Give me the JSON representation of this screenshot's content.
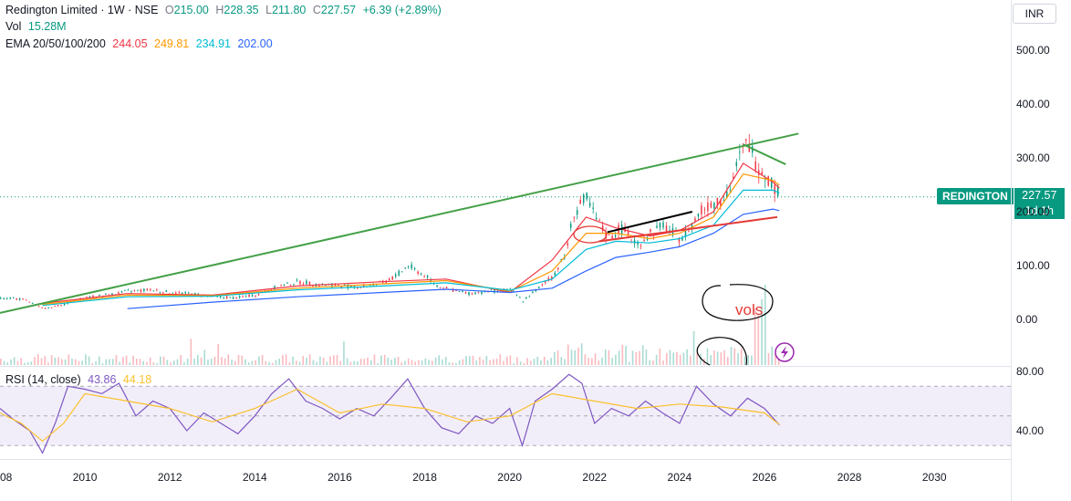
{
  "header": {
    "symbol_line": "Redington Limited · 1W · NSE",
    "open_label": "O",
    "open": "215.00",
    "high_label": "H",
    "high": "228.35",
    "low_label": "L",
    "low": "211.80",
    "close_label": "C",
    "close": "227.57",
    "change": "+6.39 (+2.89%)",
    "vol_label": "Vol",
    "vol": "15.28M",
    "ema_label": "EMA 20/50/100/200",
    "ema20": "244.05",
    "ema50": "249.81",
    "ema100": "234.91",
    "ema200": "202.00"
  },
  "rsi_header": {
    "label": "RSI (14, close)",
    "rsi": "43.86",
    "rsi_ma": "44.18"
  },
  "currency": "INR",
  "price_tag": {
    "symbol": "REDINGTON",
    "price": "227.57",
    "countdown": "1d 1h"
  },
  "annotations": {
    "vols_text": "vols"
  },
  "colors": {
    "up": "#089981",
    "down": "#f23645",
    "ema20": "#f23645",
    "ema50": "#ff9800",
    "ema100": "#00bcd4",
    "ema200": "#2962ff",
    "rsi": "#7e57c2",
    "rsi_ma": "#fbc02d",
    "trend_green": "#43a047",
    "trend_red": "#e53935",
    "trend_black": "#000000"
  },
  "chart_data": [
    {
      "type": "line",
      "title": "Redington Limited · 1W · NSE",
      "y_axis_ticks": [
        "500.00",
        "400.00",
        "300.00",
        "200.00",
        "100.00",
        "0.00"
      ],
      "y_axis_values": [
        500,
        400,
        300,
        200,
        100,
        0
      ],
      "ylim": [
        -80,
        560
      ],
      "x_axis_ticks": [
        "2008",
        "2010",
        "2012",
        "2014",
        "2016",
        "2018",
        "2020",
        "2022",
        "2024",
        "2026",
        "2028",
        "2030"
      ],
      "xlim": [
        2008,
        2031.8
      ],
      "series": [
        {
          "name": "Price",
          "x": [
            2008.0,
            2008.5,
            2009.0,
            2009.5,
            2010.0,
            2010.5,
            2011.0,
            2011.5,
            2012.0,
            2012.5,
            2013.0,
            2013.5,
            2014.0,
            2014.5,
            2015.0,
            2015.5,
            2016.0,
            2016.5,
            2017.0,
            2017.3,
            2017.6,
            2018.0,
            2018.3,
            2018.6,
            2019.0,
            2019.5,
            2020.0,
            2020.3,
            2020.7,
            2021.0,
            2021.3,
            2021.5,
            2021.8,
            2022.0,
            2022.3,
            2022.6,
            2023.0,
            2023.3,
            2023.6,
            2024.0,
            2024.3,
            2024.6,
            2025.0,
            2025.2,
            2025.4,
            2025.6,
            2025.8,
            2026.0,
            2026.2,
            2026.35
          ],
          "y": [
            40,
            38,
            20,
            28,
            40,
            45,
            52,
            55,
            50,
            48,
            42,
            40,
            45,
            60,
            70,
            65,
            62,
            60,
            68,
            80,
            100,
            80,
            62,
            55,
            48,
            52,
            55,
            35,
            60,
            80,
            120,
            200,
            225,
            190,
            150,
            170,
            140,
            160,
            175,
            150,
            180,
            210,
            225,
            250,
            300,
            330,
            290,
            270,
            250,
            227.57
          ]
        },
        {
          "name": "EMA 20",
          "x": [
            2009,
            2011,
            2013,
            2015,
            2017,
            2018.5,
            2020,
            2021,
            2021.8,
            2022.5,
            2023.3,
            2024,
            2024.8,
            2025.5,
            2026.2,
            2026.35
          ],
          "y": [
            30,
            48,
            45,
            62,
            70,
            75,
            50,
            110,
            190,
            170,
            155,
            165,
            200,
            290,
            255,
            244.05
          ]
        },
        {
          "name": "EMA 50",
          "x": [
            2009,
            2011,
            2013,
            2015,
            2017,
            2018.5,
            2020,
            2021,
            2021.8,
            2022.5,
            2023.3,
            2024,
            2024.8,
            2025.5,
            2026.2,
            2026.35
          ],
          "y": [
            28,
            45,
            44,
            58,
            66,
            72,
            52,
            90,
            160,
            160,
            150,
            160,
            190,
            270,
            258,
            249.81
          ]
        },
        {
          "name": "EMA 100",
          "x": [
            2009,
            2011,
            2013,
            2015,
            2017,
            2018.5,
            2020,
            2021,
            2021.8,
            2022.5,
            2023.3,
            2024,
            2024.8,
            2025.5,
            2026.2,
            2026.35
          ],
          "y": [
            26,
            42,
            43,
            55,
            62,
            68,
            54,
            75,
            130,
            145,
            142,
            150,
            175,
            240,
            240,
            234.91
          ]
        },
        {
          "name": "EMA 200",
          "x": [
            2011,
            2013,
            2015,
            2017,
            2018.5,
            2020,
            2021,
            2021.8,
            2022.5,
            2023.3,
            2024,
            2024.8,
            2025.5,
            2026.2,
            2026.35
          ],
          "y": [
            20,
            32,
            42,
            50,
            56,
            50,
            58,
            90,
            115,
            125,
            135,
            160,
            195,
            205,
            202.0
          ]
        }
      ],
      "drawings": [
        {
          "name": "upper-trendline",
          "color": "green",
          "x": [
            2008.0,
            2026.8
          ],
          "y": [
            12,
            345
          ]
        },
        {
          "name": "resistance-line",
          "color": "green",
          "x": [
            2025.5,
            2026.5
          ],
          "y": [
            325,
            288
          ]
        },
        {
          "name": "support-line",
          "color": "red",
          "x": [
            2022.1,
            2026.3
          ],
          "y": [
            145,
            190
          ]
        },
        {
          "name": "black-line",
          "color": "black",
          "x": [
            2022.3,
            2024.3
          ],
          "y": [
            162,
            200
          ]
        }
      ],
      "last_price": 227.57
    },
    {
      "type": "line",
      "title": "RSI (14, close)",
      "y_axis_ticks": [
        "80.00",
        "40.00"
      ],
      "y_axis_values": [
        80,
        40
      ],
      "ylim": [
        18,
        83
      ],
      "band": [
        30,
        70
      ],
      "series": [
        {
          "name": "RSI",
          "x": [
            2008.0,
            2008.3,
            2008.7,
            2009.0,
            2009.3,
            2009.6,
            2010.0,
            2010.4,
            2010.8,
            2011.2,
            2011.6,
            2012.0,
            2012.4,
            2012.8,
            2013.2,
            2013.6,
            2014.0,
            2014.4,
            2014.8,
            2015.2,
            2015.6,
            2016.0,
            2016.4,
            2016.8,
            2017.2,
            2017.6,
            2018.0,
            2018.4,
            2018.8,
            2019.2,
            2019.6,
            2020.0,
            2020.3,
            2020.6,
            2021.0,
            2021.4,
            2021.7,
            2022.0,
            2022.4,
            2022.8,
            2023.2,
            2023.6,
            2024.0,
            2024.4,
            2024.8,
            2025.2,
            2025.6,
            2026.0,
            2026.35
          ],
          "y": [
            55,
            48,
            40,
            25,
            45,
            70,
            68,
            65,
            72,
            50,
            60,
            55,
            40,
            52,
            45,
            38,
            50,
            65,
            75,
            60,
            55,
            48,
            55,
            50,
            62,
            75,
            55,
            42,
            38,
            50,
            45,
            55,
            30,
            60,
            68,
            78,
            72,
            45,
            55,
            50,
            60,
            52,
            45,
            70,
            58,
            50,
            62,
            55,
            43.86
          ]
        },
        {
          "name": "RSI-based MA",
          "x": [
            2008.0,
            2008.5,
            2009.0,
            2009.5,
            2010.0,
            2011.0,
            2012.0,
            2013.0,
            2014.0,
            2015.0,
            2016.0,
            2017.0,
            2018.0,
            2019.0,
            2020.0,
            2021.0,
            2022.0,
            2023.0,
            2024.0,
            2025.0,
            2026.0,
            2026.35
          ],
          "y": [
            52,
            45,
            33,
            45,
            65,
            60,
            55,
            46,
            55,
            68,
            52,
            58,
            55,
            46,
            50,
            65,
            60,
            55,
            58,
            56,
            52,
            44.18
          ]
        }
      ]
    }
  ]
}
